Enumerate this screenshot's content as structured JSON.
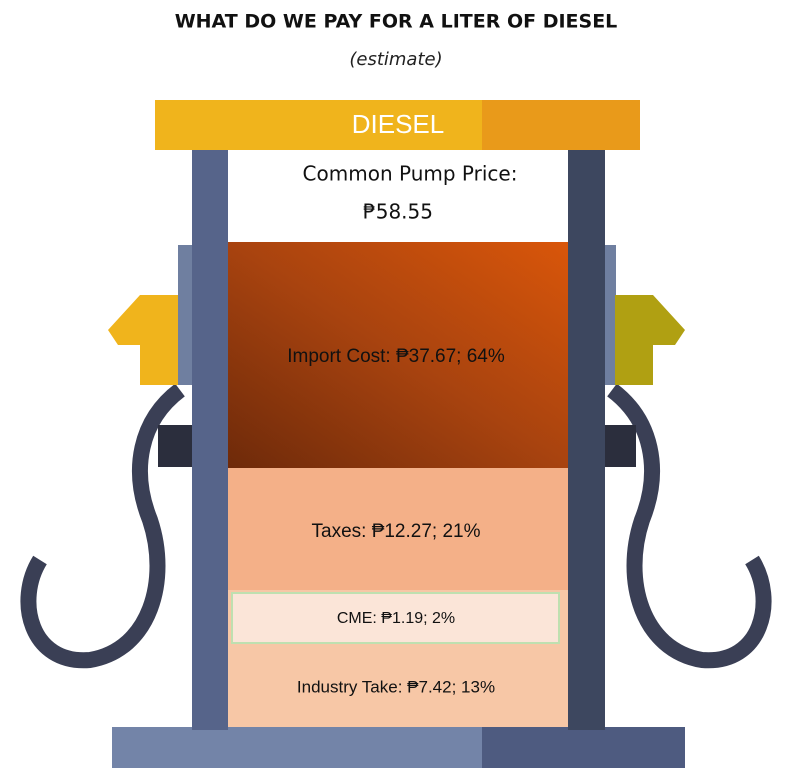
{
  "header": {
    "title": "WHAT DO WE PAY FOR A LITER OF DIESEL",
    "subtitle": "(estimate)"
  },
  "pump": {
    "label": "DIESEL",
    "price_label": "Common Pump Price:",
    "price": "₱58.55"
  },
  "segments": [
    {
      "label": "Import Cost: ₱37.67; 64%"
    },
    {
      "label": "Taxes: ₱12.27; 21%"
    },
    {
      "label": "CME: ₱1.19; 2%"
    },
    {
      "label": "Industry Take: ₱7.42; 13%"
    }
  ]
}
